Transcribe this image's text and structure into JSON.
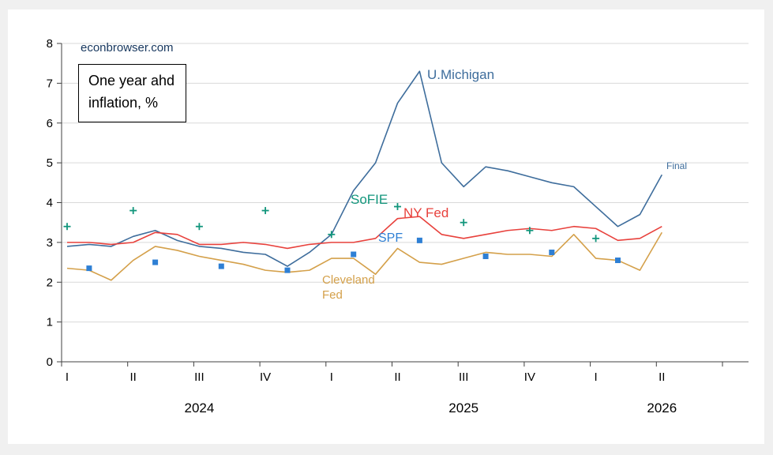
{
  "chart_data": {
    "type": "line",
    "title": "One year ahd inflation, %",
    "watermark": "econbrowser.com",
    "grid": true,
    "x_axis": {
      "quarter_labels": [
        "I",
        "II",
        "III",
        "IV",
        "I",
        "II",
        "III",
        "IV",
        "I",
        "II"
      ],
      "year_labels": [
        {
          "label": "2024",
          "month": 6
        },
        {
          "label": "2025",
          "month": 18
        },
        {
          "label": "2026",
          "month": 27
        }
      ]
    },
    "y_axis": {
      "min": 0,
      "max": 8,
      "ticks": [
        0,
        1,
        2,
        3,
        4,
        5,
        6,
        7,
        8
      ]
    },
    "series": [
      {
        "name": "U.Michigan",
        "type": "line",
        "color": "#3e6d9c",
        "start_month": 0,
        "values": [
          2.9,
          2.95,
          2.9,
          3.15,
          3.3,
          3.05,
          2.9,
          2.85,
          2.75,
          2.7,
          2.4,
          2.75,
          3.2,
          4.3,
          5.0,
          6.5,
          7.3,
          5.0,
          4.4,
          4.9,
          4.8,
          4.65,
          4.5,
          4.4,
          3.9,
          3.4,
          3.7,
          4.7
        ]
      },
      {
        "name": "NY Fed",
        "type": "line",
        "color": "#e8413c",
        "start_month": 0,
        "values": [
          3.0,
          3.0,
          2.95,
          3.0,
          3.25,
          3.2,
          2.95,
          2.95,
          3.0,
          2.95,
          2.85,
          2.95,
          3.0,
          3.0,
          3.1,
          3.6,
          3.65,
          3.2,
          3.1,
          3.2,
          3.3,
          3.35,
          3.3,
          3.4,
          3.35,
          3.05,
          3.1,
          3.4
        ]
      },
      {
        "name": "Cleveland Fed",
        "type": "line",
        "color": "#d4a04a",
        "start_month": 0,
        "values": [
          2.35,
          2.3,
          2.05,
          2.55,
          2.9,
          2.8,
          2.65,
          2.55,
          2.45,
          2.3,
          2.25,
          2.3,
          2.6,
          2.6,
          2.2,
          2.85,
          2.5,
          2.45,
          2.6,
          2.75,
          2.7,
          2.7,
          2.65,
          3.2,
          2.6,
          2.55,
          2.3,
          3.25
        ]
      },
      {
        "name": "SoFIE",
        "type": "scatter-plus",
        "color": "#12967c",
        "months": [
          0,
          3,
          6,
          9,
          12,
          15,
          18,
          21,
          24
        ],
        "values": [
          3.4,
          3.8,
          3.4,
          3.8,
          3.2,
          3.9,
          3.5,
          3.3,
          3.1
        ]
      },
      {
        "name": "SPF",
        "type": "scatter-square",
        "color": "#2e7fd4",
        "months": [
          1,
          4,
          7,
          10,
          13,
          16,
          19,
          22,
          25
        ],
        "values": [
          2.35,
          2.5,
          2.4,
          2.3,
          2.7,
          3.05,
          2.65,
          2.75,
          2.55
        ]
      }
    ],
    "annotations": {
      "watermark": "econbrowser.com",
      "box": "One year ahd\ninflation, %",
      "umich": "U.Michigan",
      "sofie": "SoFIE",
      "nyfed": "NY Fed",
      "spf": "SPF",
      "cleveland": "Cleveland\nFed",
      "final": "Final"
    },
    "colors": {
      "page_bg": "#f0f0f0",
      "chart_bg": "#ffffff",
      "gridline": "#d9d9d9",
      "axis": "#404040",
      "text": "#000000",
      "watermark": "#17375e",
      "umich": "#3e6d9c",
      "nyfed": "#e8413c",
      "cleveland": "#d4a04a",
      "sofie": "#12967c",
      "spf": "#2e7fd4"
    }
  }
}
